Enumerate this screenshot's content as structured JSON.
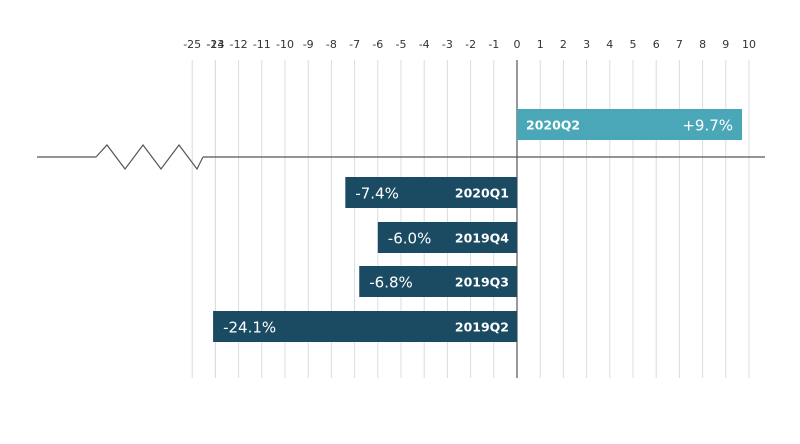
{
  "chart_data": {
    "type": "bar",
    "orientation": "horizontal",
    "axis_break": [
      -23,
      -14
    ],
    "x_ticks": [
      "-25",
      "-24",
      "-13",
      "-12",
      "-11",
      "-10",
      "-9",
      "-8",
      "-7",
      "-6",
      "-5",
      "-4",
      "-3",
      "-2",
      "-1",
      "0",
      "1",
      "2",
      "3",
      "4",
      "5",
      "6",
      "7",
      "8",
      "9",
      "10"
    ],
    "x_tick_values": [
      -25,
      -24,
      -13,
      -12,
      -11,
      -10,
      -9,
      -8,
      -7,
      -6,
      -5,
      -4,
      -3,
      -2,
      -1,
      0,
      1,
      2,
      3,
      4,
      5,
      6,
      7,
      8,
      9,
      10
    ],
    "grid": true,
    "bars": [
      {
        "label": "2020Q2",
        "value": 9.7,
        "value_text": "+9.7%",
        "color": "#4aa7b8"
      },
      {
        "label": "2020Q1",
        "value": -7.4,
        "value_text": "-7.4%",
        "color": "#1b4a63"
      },
      {
        "label": "2019Q4",
        "value": -6.0,
        "value_text": "-6.0%",
        "color": "#1b4a63"
      },
      {
        "label": "2019Q3",
        "value": -6.8,
        "value_text": "-6.8%",
        "color": "#1b4a63"
      },
      {
        "label": "2019Q2",
        "value": -24.1,
        "value_text": "-24.1%",
        "color": "#1b4a63"
      }
    ]
  }
}
